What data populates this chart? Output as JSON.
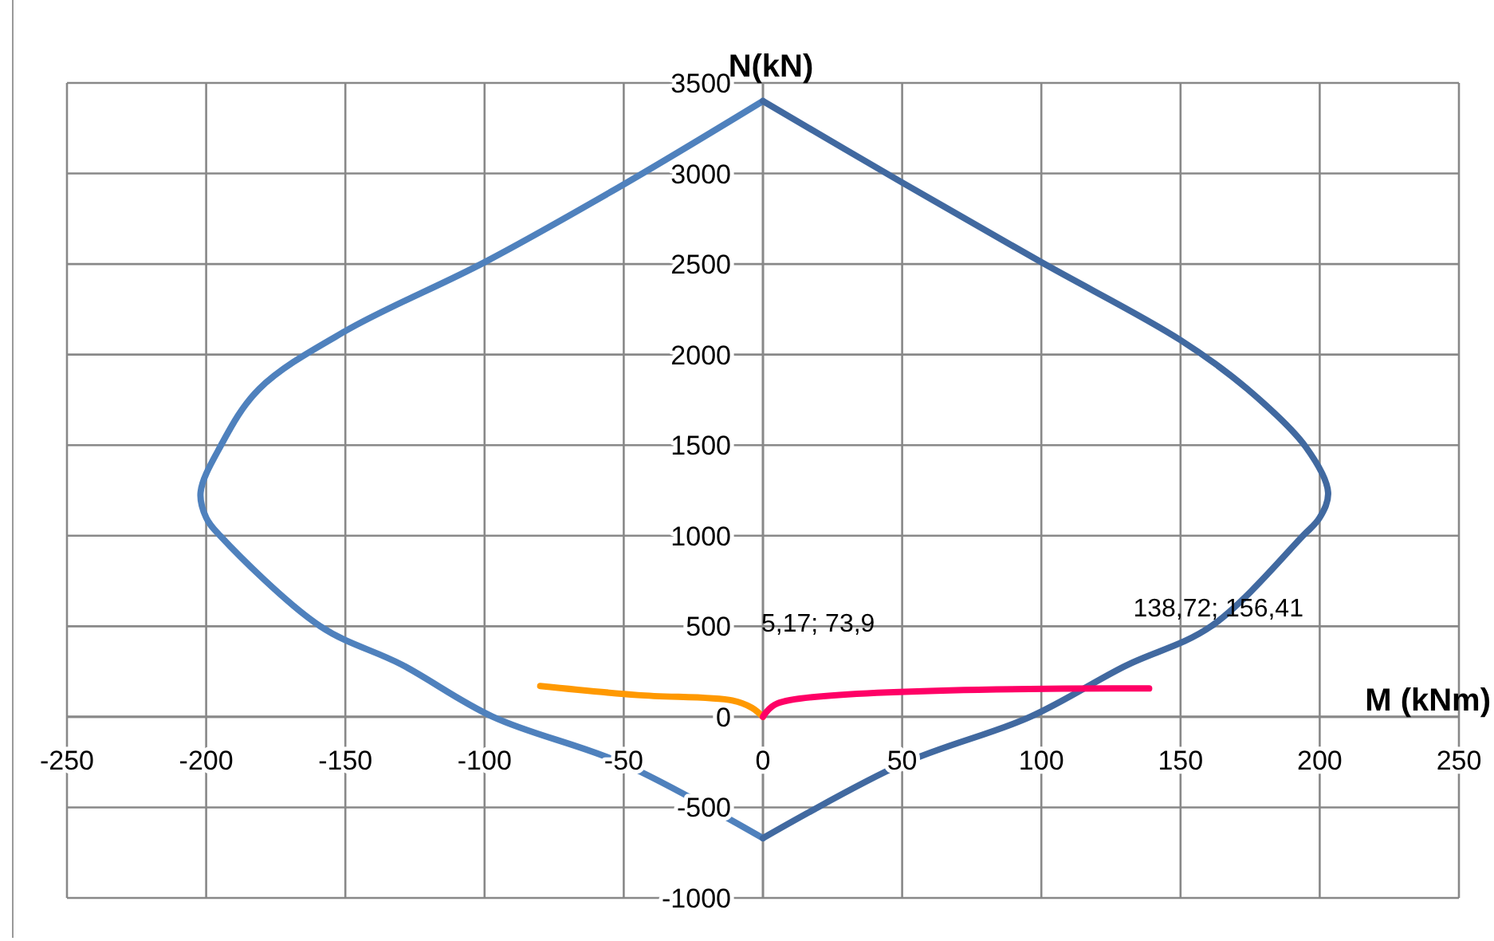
{
  "chart_data": {
    "type": "line",
    "xlabel": "M (kNm)",
    "ylabel": "N(kN)",
    "xlim": [
      -250,
      250
    ],
    "ylim": [
      -1000,
      3500
    ],
    "xticks": [
      -250,
      -200,
      -150,
      -100,
      -50,
      0,
      50,
      100,
      150,
      200,
      250
    ],
    "yticks": [
      -1000,
      -500,
      0,
      500,
      1000,
      1500,
      2000,
      2500,
      3000,
      3500
    ],
    "grid": true,
    "marker": "none",
    "line_style": "solid",
    "series": [
      {
        "color": "#4f81bd",
        "x": [
          0,
          -50,
          -100,
          -150,
          -181,
          -195,
          -202,
          -200,
          -195,
          -159,
          -130,
          -97,
          -50,
          0
        ],
        "values": [
          3400,
          2940,
          2510,
          2130,
          1810,
          1490,
          1240,
          1100,
          1000,
          500,
          290,
          0,
          -260,
          -670
        ]
      },
      {
        "color": "#4169a0",
        "x": [
          0,
          50,
          100,
          150,
          174,
          195,
          203,
          200,
          194,
          161,
          130,
          96,
          50,
          0
        ],
        "values": [
          3400,
          2950,
          2510,
          2080,
          1810,
          1490,
          1240,
          1100,
          1000,
          500,
          280,
          0,
          -260,
          -670
        ]
      },
      {
        "color": "#ff9900",
        "x": [
          -80,
          -45,
          -11,
          -4,
          0
        ],
        "values": [
          170,
          120,
          90,
          50,
          0
        ]
      },
      {
        "color": "#ff0066",
        "x": [
          0,
          5.17,
          138.72
        ],
        "values": [
          0,
          73.9,
          156.41
        ]
      }
    ],
    "annotations": [
      {
        "text": "5,17; 73,9",
        "x": 5.17,
        "y": 73.9
      },
      {
        "text": "138,72; 156,41",
        "x": 138.72,
        "y": 156.41
      }
    ]
  }
}
